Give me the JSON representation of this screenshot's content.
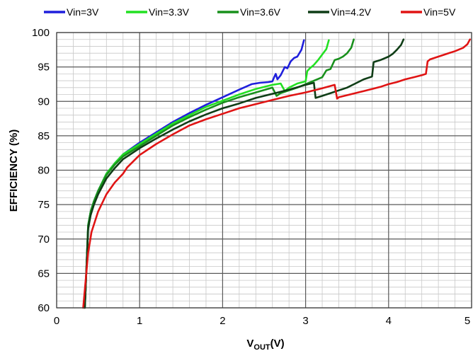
{
  "chart_data": {
    "type": "line",
    "title": "",
    "xlabel": {
      "main": "V",
      "sub": "OUT",
      "unit": "(V)"
    },
    "ylabel": "EFFICIENCY (%)",
    "xlim": [
      0,
      5
    ],
    "ylim": [
      60,
      100
    ],
    "x_ticks": [
      0,
      1,
      2,
      3,
      4,
      5
    ],
    "y_ticks": [
      60,
      65,
      70,
      75,
      80,
      85,
      90,
      95,
      100
    ],
    "x_minor_step": 0.2,
    "y_minor_step": 1,
    "grid": true,
    "legend_position": "top",
    "series": [
      {
        "name": "Vin=3V",
        "color": "#1f1fdc",
        "x": [
          0.34,
          0.36,
          0.38,
          0.41,
          0.45,
          0.5,
          0.6,
          0.7,
          0.8,
          1.0,
          1.2,
          1.4,
          1.6,
          1.8,
          2.0,
          2.2,
          2.35,
          2.45,
          2.55,
          2.6,
          2.62,
          2.64,
          2.66,
          2.7,
          2.75,
          2.78,
          2.82,
          2.86,
          2.9,
          2.95,
          2.98
        ],
        "y": [
          60,
          66,
          72,
          74,
          75.5,
          77,
          79.5,
          81,
          82.3,
          84,
          85.5,
          87,
          88.3,
          89.5,
          90.6,
          91.7,
          92.5,
          92.7,
          92.8,
          92.9,
          93.5,
          94,
          93.2,
          93.8,
          95,
          94.8,
          95.8,
          96.3,
          96.5,
          97.5,
          98.9
        ]
      },
      {
        "name": "Vin=3.3V",
        "color": "#22e022",
        "x": [
          0.34,
          0.36,
          0.38,
          0.41,
          0.45,
          0.5,
          0.6,
          0.7,
          0.8,
          1.0,
          1.2,
          1.4,
          1.6,
          1.8,
          2.0,
          2.2,
          2.4,
          2.6,
          2.7,
          2.75,
          2.8,
          2.9,
          3.0,
          3.02,
          3.05,
          3.1,
          3.15,
          3.2,
          3.25,
          3.28
        ],
        "y": [
          60,
          66,
          72,
          74,
          75.5,
          77,
          79.5,
          81,
          82.3,
          83.8,
          85.3,
          86.8,
          88,
          89.2,
          90.1,
          91,
          91.8,
          92.4,
          92.6,
          91.5,
          92,
          92.6,
          92.9,
          94.4,
          94.8,
          95.3,
          96,
          96.8,
          97.6,
          98.9
        ]
      },
      {
        "name": "Vin=3.6V",
        "color": "#18901c",
        "x": [
          0.34,
          0.36,
          0.38,
          0.41,
          0.45,
          0.5,
          0.6,
          0.7,
          0.8,
          1.0,
          1.2,
          1.4,
          1.6,
          1.8,
          2.0,
          2.2,
          2.4,
          2.6,
          2.65,
          2.7,
          2.8,
          2.9,
          3.0,
          3.1,
          3.2,
          3.25,
          3.3,
          3.35,
          3.4,
          3.45,
          3.5,
          3.55,
          3.58
        ],
        "y": [
          60,
          66,
          72,
          74,
          75.5,
          77,
          79.3,
          80.8,
          82,
          83.5,
          85,
          86.5,
          87.7,
          88.8,
          89.8,
          90.6,
          91.3,
          92,
          90.8,
          91.2,
          91.6,
          92,
          92.5,
          93,
          93.5,
          94.5,
          94.7,
          96,
          96.2,
          96.5,
          97,
          97.8,
          99
        ]
      },
      {
        "name": "Vin=4.2V",
        "color": "#0f3d16",
        "x": [
          0.34,
          0.36,
          0.38,
          0.41,
          0.45,
          0.5,
          0.6,
          0.7,
          0.8,
          1.0,
          1.2,
          1.4,
          1.6,
          1.8,
          2.0,
          2.2,
          2.4,
          2.6,
          2.8,
          3.0,
          3.1,
          3.12,
          3.2,
          3.3,
          3.4,
          3.5,
          3.6,
          3.7,
          3.8,
          3.82,
          3.9,
          4.0,
          4.05,
          4.1,
          4.15,
          4.18
        ],
        "y": [
          60,
          66,
          71.5,
          73.5,
          75,
          76.5,
          78.8,
          80.3,
          81.6,
          83.2,
          84.6,
          85.9,
          87.1,
          88.1,
          89,
          89.7,
          90.5,
          91.1,
          91.7,
          92.4,
          92.7,
          90.5,
          90.8,
          91.2,
          91.6,
          92,
          92.6,
          93.2,
          93.6,
          95.7,
          96,
          96.5,
          96.9,
          97.5,
          98.2,
          99
        ]
      },
      {
        "name": "Vin=5V",
        "color": "#e01414",
        "x": [
          0.32,
          0.35,
          0.38,
          0.42,
          0.5,
          0.6,
          0.7,
          0.8,
          0.85,
          1.0,
          1.2,
          1.4,
          1.6,
          1.8,
          2.0,
          2.2,
          2.4,
          2.6,
          2.8,
          3.0,
          3.2,
          3.35,
          3.38,
          3.4,
          3.5,
          3.6,
          3.7,
          3.8,
          3.9,
          4.0,
          4.1,
          4.2,
          4.3,
          4.4,
          4.45,
          4.47,
          4.5,
          4.6,
          4.7,
          4.8,
          4.9,
          4.95,
          4.98
        ],
        "y": [
          60,
          64,
          68,
          71,
          74,
          76.5,
          78.2,
          79.5,
          80.4,
          82.2,
          83.8,
          85.2,
          86.5,
          87.4,
          88.2,
          89,
          89.6,
          90.2,
          90.8,
          91.3,
          91.9,
          92.4,
          90.4,
          90.6,
          90.9,
          91.2,
          91.5,
          91.8,
          92.1,
          92.5,
          92.8,
          93.2,
          93.5,
          93.8,
          94,
          95.8,
          96.1,
          96.5,
          96.9,
          97.3,
          97.8,
          98.3,
          99
        ]
      }
    ]
  }
}
